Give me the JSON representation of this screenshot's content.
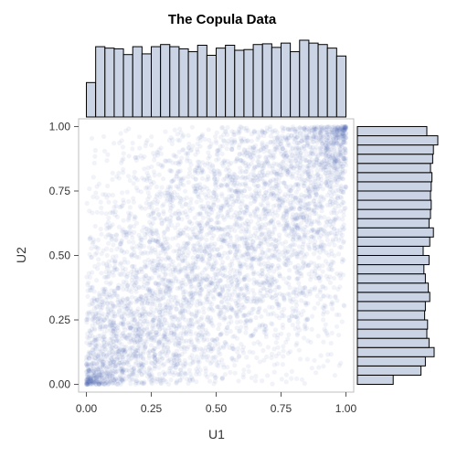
{
  "chart_data": {
    "type": "scatter",
    "title": "The Copula Data",
    "xlabel": "U1",
    "ylabel": "U2",
    "xlim": [
      -0.03,
      1.03
    ],
    "ylim": [
      -0.03,
      1.03
    ],
    "xticks": [
      "0.00",
      "0.25",
      "0.50",
      "0.75",
      "1.00"
    ],
    "yticks": [
      "0.00",
      "0.25",
      "0.50",
      "0.75",
      "1.00"
    ],
    "point_color": "#4a64b8",
    "bar_fill": "#cbd4e4",
    "bar_stroke": "#000000",
    "point_count": 5000,
    "top_histogram": {
      "variable": "U1",
      "bins": 28,
      "range": [
        0,
        1
      ],
      "relative_heights": [
        0.48,
        0.98,
        0.96,
        0.95,
        0.87,
        0.98,
        0.88,
        0.98,
        1.01,
        0.98,
        0.95,
        0.91,
        1.0,
        0.86,
        0.96,
        1.0,
        0.93,
        0.94,
        1.01,
        1.02,
        0.97,
        1.03,
        0.91,
        1.07,
        1.03,
        1.01,
        0.96,
        0.85
      ]
    },
    "right_histogram": {
      "variable": "U2",
      "bins": 28,
      "range": [
        0,
        1
      ],
      "relative_heights": [
        0.49,
        0.87,
        0.93,
        1.05,
        0.98,
        0.95,
        0.96,
        0.92,
        0.93,
        0.99,
        0.97,
        0.93,
        0.91,
        0.98,
        0.9,
        0.99,
        1.04,
        0.98,
        1.0,
        1.01,
        1.0,
        1.01,
        1.02,
        1.0,
        1.03,
        1.04,
        1.1,
        0.95
      ]
    }
  }
}
